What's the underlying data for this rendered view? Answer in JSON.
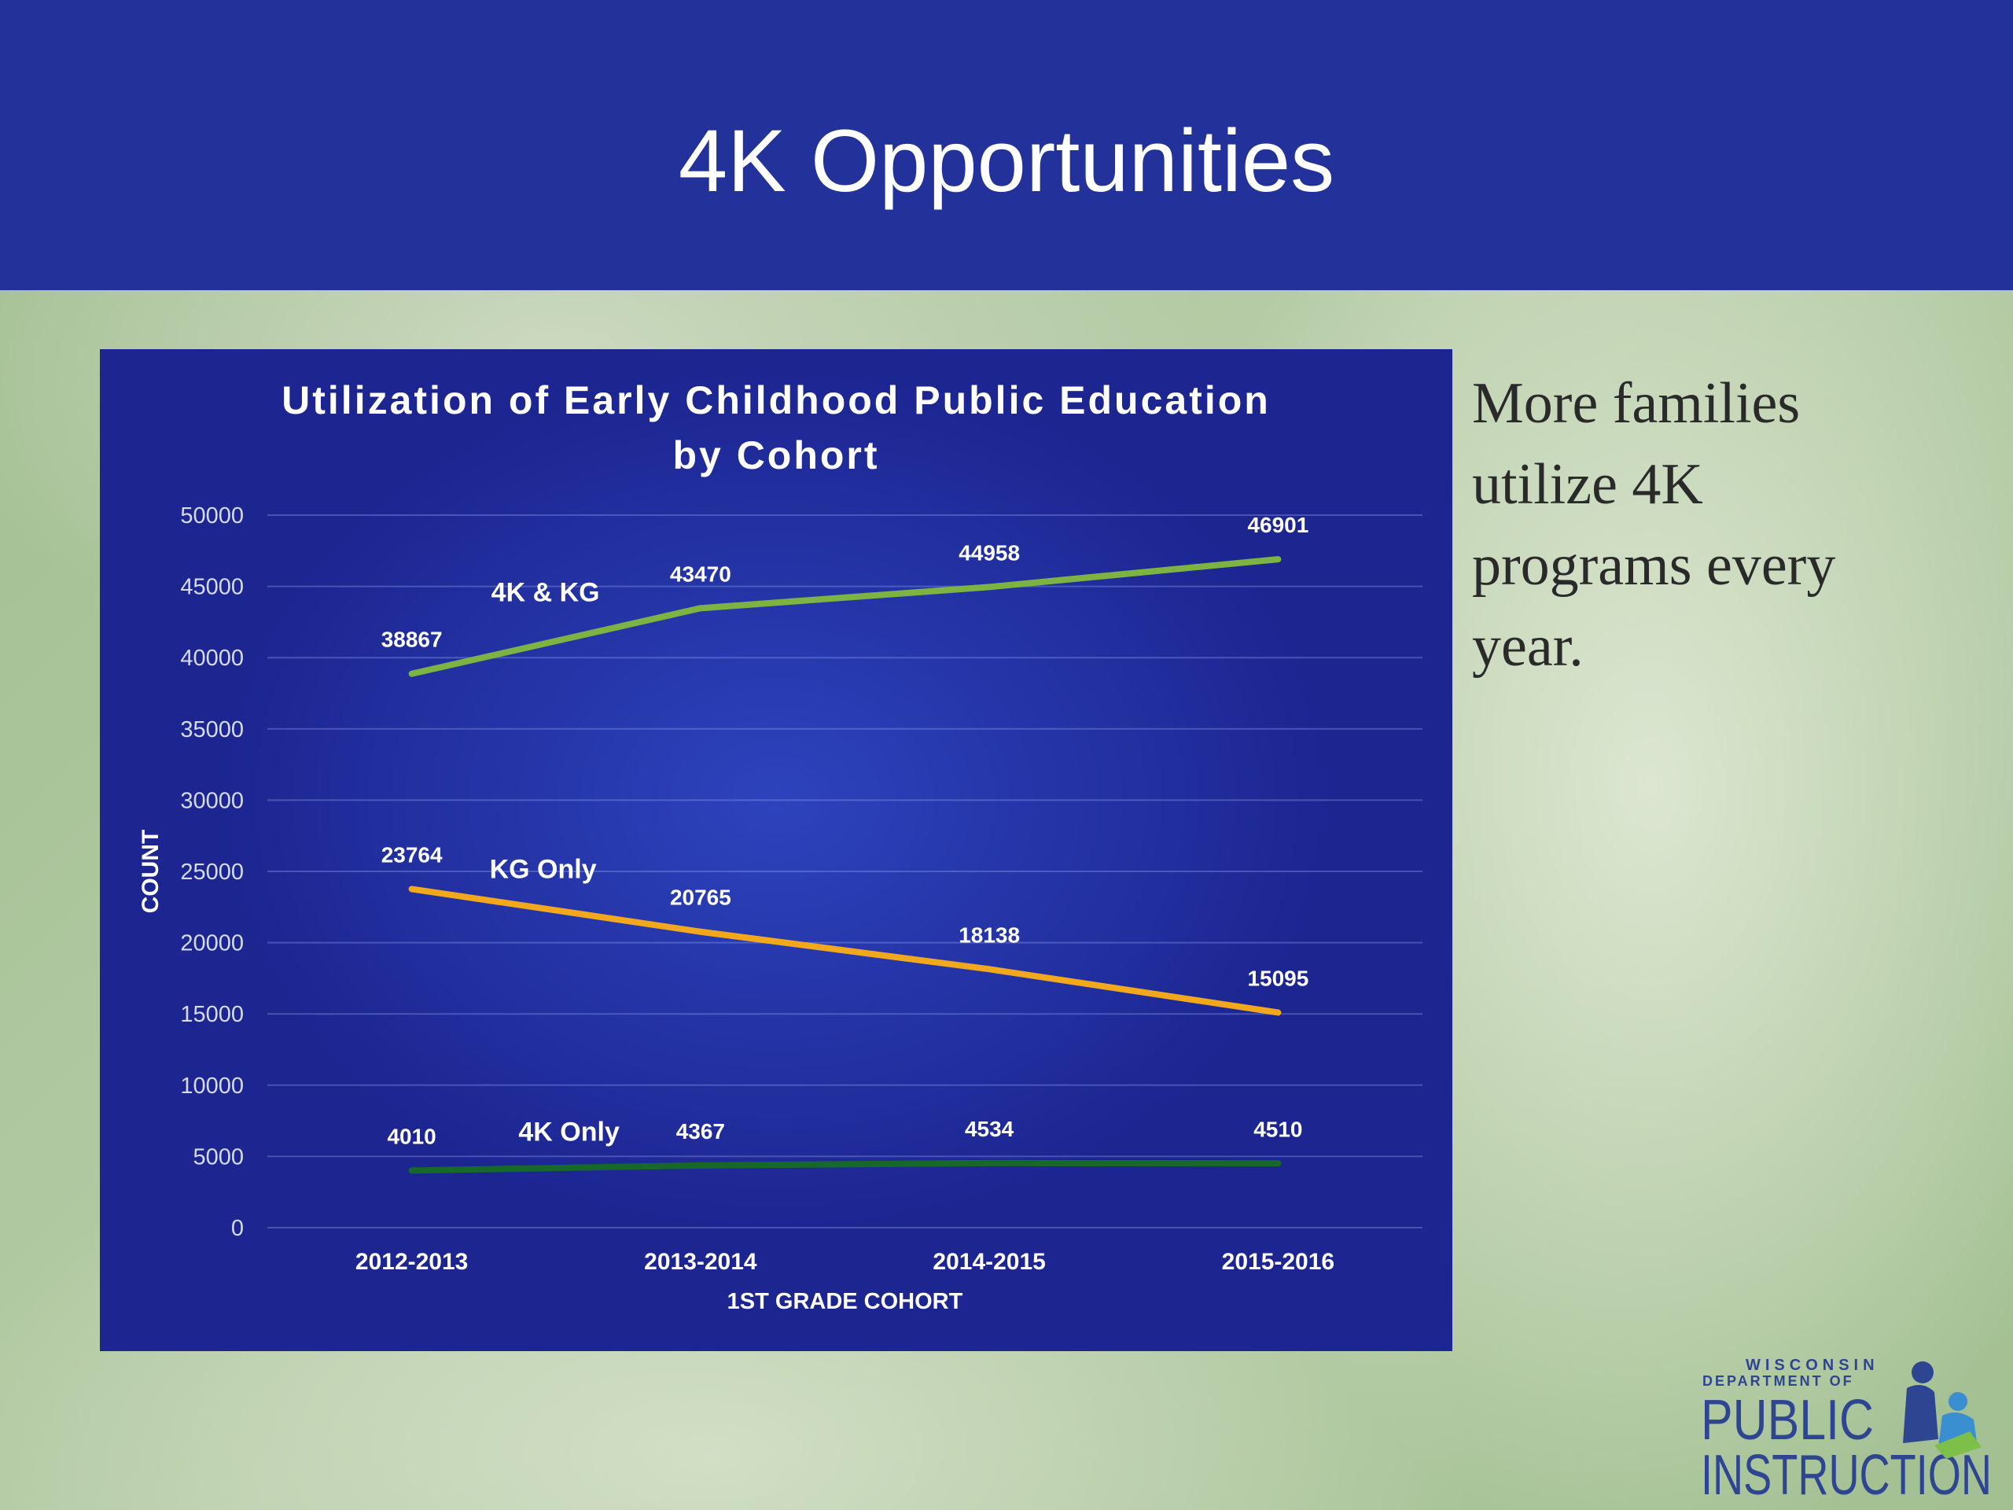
{
  "slide": {
    "title": "4K Opportunities",
    "body": "More families utilize 4K programs every year.",
    "logo": [
      "WISCONSIN",
      "DEPARTMENT OF",
      "PUBLIC",
      "INSTRUCTION"
    ]
  },
  "chart_data": {
    "type": "line",
    "title": "Utilization of Early Childhood Public Education by Cohort",
    "x_label": "1ST GRADE COHORT",
    "y_label": "COUNT",
    "categories": [
      "2012-2013",
      "2013-2014",
      "2014-2015",
      "2015-2016"
    ],
    "series": [
      {
        "name": "4K & KG",
        "color": "#7cb342",
        "values": [
          38867,
          43470,
          44958,
          46901
        ]
      },
      {
        "name": "KG Only",
        "color": "#f2a81d",
        "values": [
          23764,
          20765,
          18138,
          15095
        ]
      },
      {
        "name": "4K Only",
        "color": "#17692a",
        "values": [
          4010,
          4367,
          4534,
          4510
        ]
      }
    ],
    "ylim": [
      0,
      50000
    ],
    "yticks": [
      0,
      5000,
      10000,
      15000,
      20000,
      25000,
      30000,
      35000,
      40000,
      45000,
      50000
    ],
    "grid": true
  }
}
